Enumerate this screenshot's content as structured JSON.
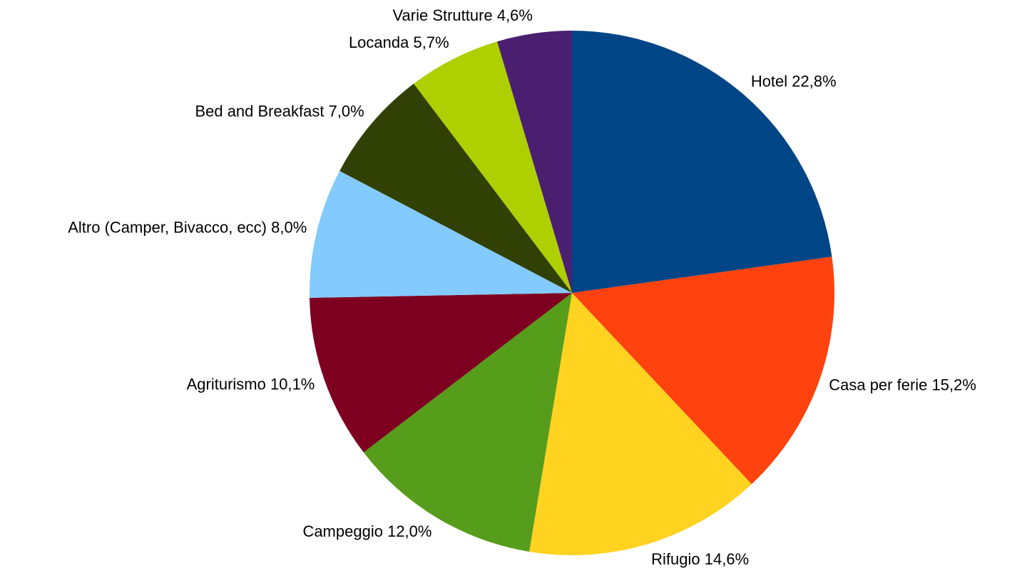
{
  "chart_data": {
    "type": "pie",
    "categories": [
      "Hotel",
      "Casa per ferie",
      "Rifugio",
      "Campeggio",
      "Agriturismo",
      "Altro (Camper, Bivacco, ecc)",
      "Bed and Breakfast",
      "Locanda",
      "Varie Strutture"
    ],
    "values": [
      22.8,
      15.2,
      14.6,
      12.0,
      10.1,
      8.0,
      7.0,
      5.7,
      4.6
    ],
    "value_labels": [
      "22,8%",
      "15,2%",
      "14,6%",
      "12,0%",
      "10,1%",
      "8,0%",
      "7,0%",
      "5,7%",
      "4,6%"
    ],
    "colors": [
      "#004586",
      "#ff420e",
      "#ffd320",
      "#579d1c",
      "#7e0021",
      "#83caff",
      "#314004",
      "#aecf00",
      "#4b1f6f"
    ]
  }
}
